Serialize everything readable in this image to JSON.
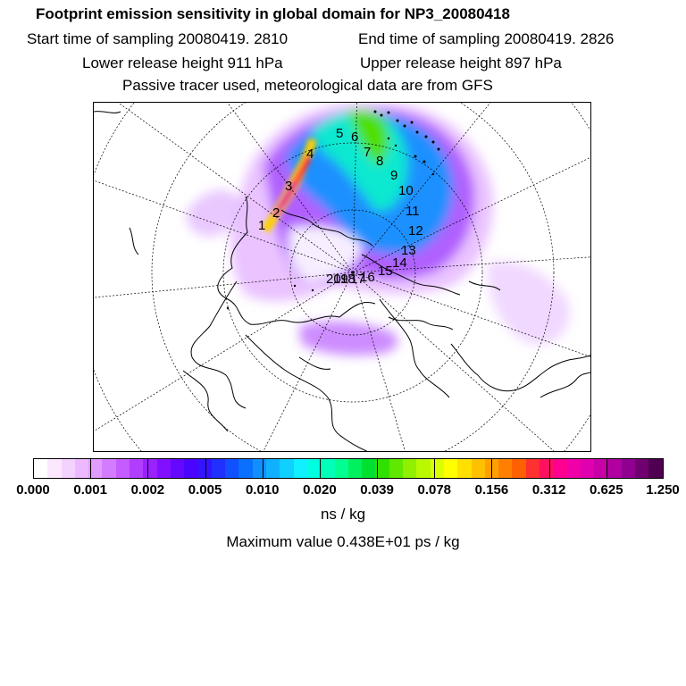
{
  "header": {
    "title": "Footprint emission sensitivity in global domain for NP3_20080418",
    "start": "Start time of sampling 20080419.  2810",
    "end": "End time of sampling 20080419.  2826",
    "lower": "Lower release height  911 hPa",
    "upper": "Upper release height  897 hPa",
    "note": "Passive tracer used, meteorological data are from GFS"
  },
  "map": {
    "projection": "polar-stereographic",
    "gridlines": "dotted lat/lon",
    "trajectory_labels": [
      "1",
      "2",
      "3",
      "4",
      "5",
      "6",
      "7",
      "8",
      "9",
      "10",
      "11",
      "12",
      "13",
      "14",
      "15",
      "16",
      "17",
      "18",
      "19",
      "20"
    ]
  },
  "colorbar": {
    "colors": [
      "#ffffff",
      "#fbe8ff",
      "#f4d2ff",
      "#ecb8ff",
      "#e29cff",
      "#d47cff",
      "#c45cff",
      "#b13dff",
      "#9a22ff",
      "#8010ff",
      "#6408ff",
      "#4a05ff",
      "#3414ff",
      "#2030ff",
      "#1050ff",
      "#0a70ff",
      "#1090ff",
      "#10b0ff",
      "#10d0ff",
      "#10f0ff",
      "#00ffe0",
      "#00ffb8",
      "#00ff90",
      "#00f060",
      "#00e030",
      "#30e000",
      "#60e800",
      "#90f000",
      "#b8f800",
      "#dcff00",
      "#ffff00",
      "#ffe000",
      "#ffc000",
      "#ffa000",
      "#ff8000",
      "#ff6000",
      "#ff3030",
      "#ff1060",
      "#ff0090",
      "#f000a8",
      "#e000b0",
      "#c800a8",
      "#b000a0",
      "#900090",
      "#700070",
      "#500050"
    ],
    "tick_labels": [
      "0.000",
      "0.001",
      "0.002",
      "0.005",
      "0.010",
      "0.020",
      "0.039",
      "0.078",
      "0.156",
      "0.312",
      "0.625",
      "1.250"
    ],
    "unit": "ns / kg"
  },
  "maximum": "Maximum value  0.438E+01 ps / kg"
}
